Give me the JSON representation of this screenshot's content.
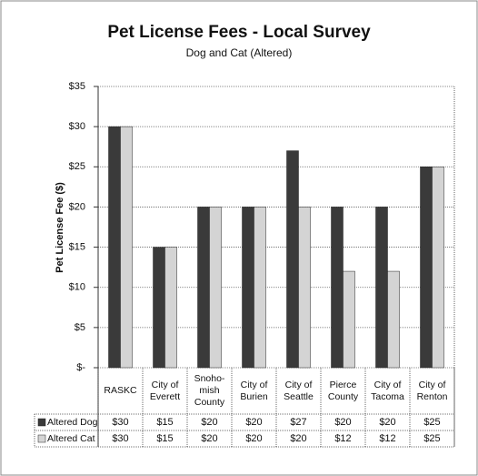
{
  "chart_data": {
    "type": "bar",
    "title": "Pet License Fees - Local Survey",
    "subtitle": "Dog and Cat (Altered)",
    "y_label": "Pet License Fee ($)",
    "categories": [
      "RASKC",
      "City of Everett",
      "Snoho-mish County",
      "City of Burien",
      "City of Seattle",
      "Pierce County",
      "City of Tacoma",
      "City of Renton"
    ],
    "series": [
      {
        "name": "Altered Dog",
        "color": "#3a3a3a",
        "values": [
          30,
          15,
          20,
          20,
          27,
          20,
          20,
          25
        ],
        "value_labels": [
          "$30",
          "$15",
          "$20",
          "$20",
          "$27",
          "$20",
          "$20",
          "$25"
        ]
      },
      {
        "name": "Altered Cat",
        "color": "#d4d4d4",
        "values": [
          30,
          15,
          20,
          20,
          20,
          12,
          12,
          25
        ],
        "value_labels": [
          "$30",
          "$15",
          "$20",
          "$20",
          "$20",
          "$12",
          "$12",
          "$25"
        ]
      }
    ],
    "ylim": [
      0,
      35
    ],
    "yticks": [
      {
        "value": 0,
        "label": "$-"
      },
      {
        "value": 5,
        "label": "$5"
      },
      {
        "value": 10,
        "label": "$10"
      },
      {
        "value": 15,
        "label": "$15"
      },
      {
        "value": 20,
        "label": "$20"
      },
      {
        "value": 25,
        "label": "$25"
      },
      {
        "value": 30,
        "label": "$30"
      },
      {
        "value": 35,
        "label": "$35"
      }
    ],
    "grid": true
  }
}
